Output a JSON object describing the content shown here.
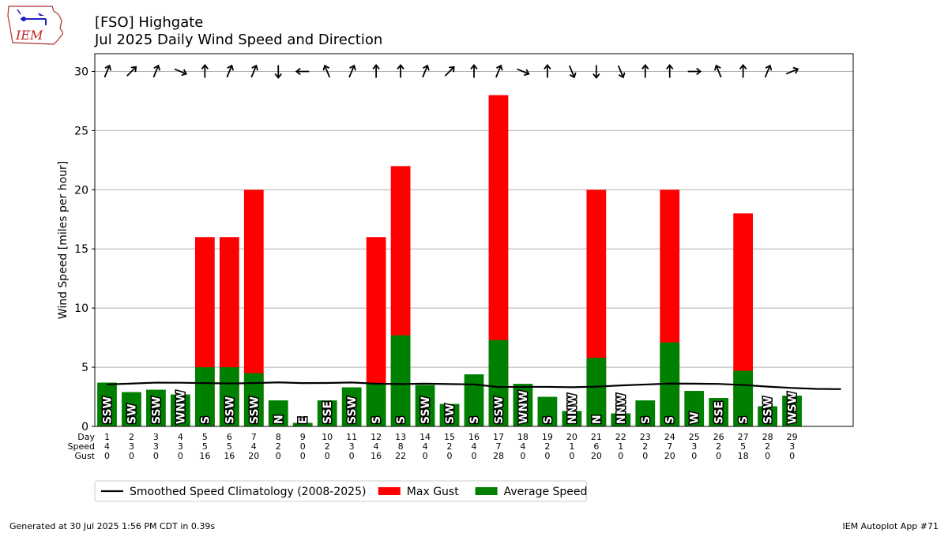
{
  "header": {
    "station": "[FSO] Highgate",
    "subtitle": "Jul 2025 Daily Wind Speed and Direction",
    "logo_text": "IEM"
  },
  "footer": {
    "generated": "Generated at 30 Jul 2025 1:56 PM CDT in 0.39s",
    "app": "IEM Autoplot App #71"
  },
  "colors": {
    "gust": "#ff0000",
    "average": "#008000",
    "climatology": "#000000",
    "grid": "#b0b0b0"
  },
  "chart_data": {
    "type": "bar",
    "ylabel": "Wind Speed [miles per hour]",
    "ylim": [
      0,
      31.5
    ],
    "yticks": [
      0,
      5,
      10,
      15,
      20,
      25,
      30
    ],
    "grid": true,
    "row_labels": [
      "Day",
      "Speed",
      "Gust"
    ],
    "days": [
      1,
      2,
      3,
      4,
      5,
      6,
      7,
      8,
      9,
      10,
      11,
      12,
      13,
      14,
      15,
      16,
      17,
      18,
      19,
      20,
      21,
      22,
      23,
      24,
      25,
      26,
      27,
      28,
      29
    ],
    "speed_labels": [
      4,
      3,
      3,
      3,
      5,
      5,
      4,
      2,
      0,
      2,
      3,
      4,
      8,
      4,
      2,
      4,
      7,
      4,
      2,
      1,
      6,
      1,
      2,
      7,
      3,
      2,
      5,
      2,
      3
    ],
    "gust_labels": [
      0,
      0,
      0,
      0,
      16,
      16,
      20,
      0,
      0,
      0,
      0,
      16,
      22,
      0,
      0,
      0,
      28,
      0,
      0,
      0,
      20,
      0,
      0,
      20,
      0,
      0,
      18,
      0,
      0
    ],
    "average_speed": [
      3.7,
      2.9,
      3.1,
      2.7,
      5.0,
      5.0,
      4.5,
      2.2,
      0.3,
      2.2,
      3.3,
      3.6,
      7.7,
      3.5,
      1.9,
      4.4,
      7.3,
      3.6,
      2.5,
      1.3,
      5.8,
      1.1,
      2.2,
      7.1,
      3.0,
      2.4,
      4.7,
      1.7,
      2.6
    ],
    "max_gust": [
      0,
      0,
      0,
      0,
      16,
      16,
      20,
      0,
      0,
      0,
      0,
      16,
      22,
      0,
      0,
      0,
      28,
      0,
      0,
      0,
      20,
      0,
      0,
      20,
      0,
      0,
      18,
      0,
      0
    ],
    "directions": [
      "SSW",
      "SW",
      "SSW",
      "WNW",
      "S",
      "SSW",
      "SSW",
      "N",
      "E",
      "SSE",
      "SSW",
      "S",
      "S",
      "SSW",
      "SW",
      "S",
      "SSW",
      "WNW",
      "S",
      "NNW",
      "N",
      "NNW",
      "S",
      "S",
      "W",
      "SSE",
      "S",
      "SSW",
      "WSW"
    ],
    "climatology_x": [
      1,
      2,
      3,
      4,
      5,
      6,
      7,
      8,
      9,
      10,
      11,
      12,
      13,
      14,
      15,
      16,
      17,
      18,
      19,
      20,
      21,
      22,
      23,
      24,
      25,
      26,
      27,
      28,
      29,
      30,
      31
    ],
    "climatology": [
      3.55,
      3.62,
      3.7,
      3.69,
      3.66,
      3.63,
      3.66,
      3.72,
      3.66,
      3.67,
      3.71,
      3.61,
      3.58,
      3.61,
      3.58,
      3.55,
      3.33,
      3.34,
      3.34,
      3.31,
      3.36,
      3.46,
      3.54,
      3.62,
      3.61,
      3.59,
      3.5,
      3.36,
      3.25,
      3.17,
      3.15
    ],
    "legend": [
      {
        "label": "Smoothed Speed Climatology (2008-2025)",
        "kind": "line",
        "color": "#000000"
      },
      {
        "label": "Max Gust",
        "kind": "box",
        "color": "#ff0000"
      },
      {
        "label": "Average Speed",
        "kind": "box",
        "color": "#008000"
      }
    ],
    "legend_placement": "below"
  }
}
